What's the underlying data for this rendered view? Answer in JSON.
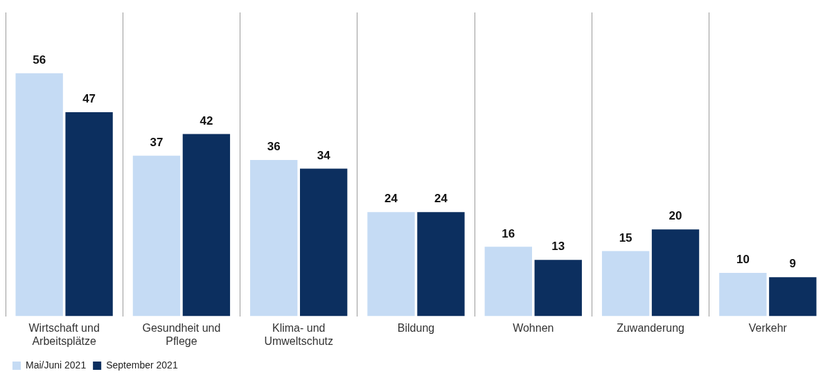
{
  "chart_data": {
    "type": "bar",
    "categories": [
      "Wirtschaft und Arbeitsplätze",
      "Gesundheit und Pflege",
      "Klima- und Umweltschutz",
      "Bildung",
      "Wohnen",
      "Zuwanderung",
      "Verkehr"
    ],
    "series": [
      {
        "name": "Mai/Juni 2021",
        "color": "#c5dbf4",
        "values": [
          56,
          37,
          36,
          24,
          16,
          15,
          10
        ]
      },
      {
        "name": "September 2021",
        "color": "#0c2f5f",
        "values": [
          47,
          42,
          34,
          24,
          13,
          20,
          9
        ]
      }
    ],
    "data_labels": true,
    "grid": "x",
    "legend": "bottom left"
  }
}
